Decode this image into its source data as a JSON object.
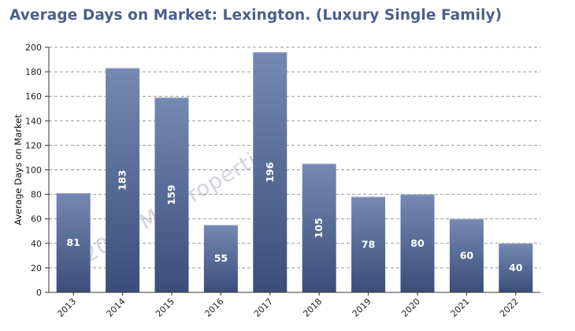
{
  "chart_data": {
    "type": "bar",
    "title": "Average Days on Market: Lexington. (Luxury Single Family)",
    "ylabel": "Average Days on Market",
    "xlabel": "",
    "categories": [
      "2013",
      "2014",
      "2015",
      "2016",
      "2017",
      "2018",
      "2019",
      "2020",
      "2021",
      "2022"
    ],
    "values": [
      81,
      183,
      159,
      55,
      196,
      105,
      78,
      80,
      60,
      40
    ],
    "data_labels": [
      "81",
      "183",
      "159",
      "55",
      "196",
      "105",
      "78",
      "80",
      "60",
      "40"
    ],
    "ylim": [
      0,
      200
    ],
    "yticks": [
      "0",
      "20",
      "40",
      "60",
      "80",
      "100",
      "120",
      "140",
      "160",
      "180",
      "200"
    ],
    "grid": true,
    "watermark": "© 2023 MA Properties",
    "colors": {
      "bar_top": "#7589b3",
      "bar_bottom": "#3b4d7a",
      "title": "#4a5f8c",
      "grid": "#999999"
    }
  }
}
